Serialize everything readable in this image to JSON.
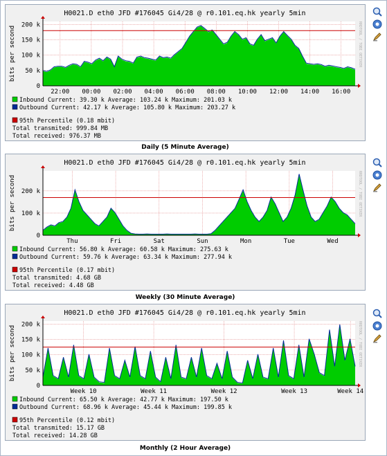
{
  "colors": {
    "inbound": "#00cc00",
    "outbound": "#002a97",
    "percentile": "#cc0000",
    "canvas": "#ffffff",
    "panel": "#f0f0f0"
  },
  "icons": [
    "zoom-in-icon",
    "zoom-out-icon",
    "edit-graph-icon"
  ],
  "graphs": [
    {
      "title": "H0021.D eth0 JFD #176045 Gi4/28 @ r0.101.eq.hk yearly 5min",
      "caption": "Daily (5 Minute Average)",
      "watermark": "RRDTOOL / TOBI OETIKER",
      "legend": {
        "inbound": "Inbound   Current:    39.30 k  Average:  103.24 k  Maximum:   201.03 k",
        "outbound": "Outbound  Current:    42.17 k  Average:  105.80 k  Maximum:   203.27 k",
        "percentile": "95th Percentile   (0.18 mbit)",
        "transmitted": "Total transmited: 999.84 MB",
        "received": "Total received: 976.37 MB"
      },
      "chart_data": {
        "type": "area",
        "ylabel": "bits per second",
        "x_ticks": [
          "22:00",
          "00:00",
          "02:00",
          "04:00",
          "06:00",
          "08:00",
          "10:00",
          "12:00",
          "14:00",
          "16:00",
          "18:00",
          "20:00"
        ],
        "x_tick_pos": [
          0.055,
          0.155,
          0.255,
          0.355,
          0.455,
          0.555,
          0.655,
          0.755,
          0.855,
          0.955,
          1.055,
          1.155
        ],
        "y_ticks": [
          "0",
          "50 k",
          "100 k",
          "150 k",
          "200 k"
        ],
        "y_tick_values": [
          0,
          50000,
          100000,
          150000,
          200000
        ],
        "ylim": [
          0,
          210000
        ],
        "percentile_95": 180000,
        "series": [
          {
            "name": "Inbound",
            "values": [
              48000,
              45000,
              50000,
              60000,
              62000,
              62000,
              58000,
              65000,
              70000,
              68000,
              60000,
              78000,
              75000,
              70000,
              82000,
              88000,
              80000,
              92000,
              85000,
              60000,
              95000,
              85000,
              80000,
              78000,
              72000,
              92000,
              95000,
              90000,
              88000,
              85000,
              82000,
              95000,
              90000,
              92000,
              88000,
              100000,
              110000,
              120000,
              140000,
              160000,
              175000,
              190000,
              195000,
              185000,
              175000,
              180000,
              165000,
              150000,
              135000,
              140000,
              160000,
              175000,
              165000,
              150000,
              155000,
              135000,
              130000,
              150000,
              165000,
              145000,
              150000,
              155000,
              138000,
              160000,
              175000,
              162000,
              150000,
              130000,
              120000,
              95000,
              72000,
              70000,
              68000,
              70000,
              67000,
              62000,
              65000,
              63000,
              60000,
              58000,
              55000,
              60000,
              57000,
              52000
            ]
          },
          {
            "name": "Outbound",
            "values": [
              50000,
              47000,
              52000,
              62000,
              64000,
              64000,
              60000,
              67000,
              72000,
              70000,
              62000,
              80000,
              77000,
              72000,
              84000,
              90000,
              82000,
              94000,
              87000,
              62000,
              97000,
              87000,
              82000,
              80000,
              74000,
              94000,
              97000,
              92000,
              90000,
              87000,
              84000,
              97000,
              92000,
              94000,
              90000,
              102000,
              112000,
              122000,
              142000,
              162000,
              177000,
              192000,
              197000,
              187000,
              177000,
              182000,
              167000,
              152000,
              137000,
              142000,
              162000,
              177000,
              167000,
              152000,
              157000,
              137000,
              132000,
              152000,
              167000,
              147000,
              152000,
              157000,
              140000,
              162000,
              177000,
              164000,
              152000,
              132000,
              122000,
              97000,
              74000,
              72000,
              70000,
              72000,
              69000,
              64000,
              67000,
              65000,
              62000,
              60000,
              57000,
              62000,
              59000,
              54000
            ]
          }
        ]
      }
    },
    {
      "title": "H0021.D eth0 JFD #176045 Gi4/28 @ r0.101.eq.hk yearly 5min",
      "caption": "Weekly (30 Minute Average)",
      "watermark": "RRDTOOL / TOBI OETIKER",
      "legend": {
        "inbound": "Inbound   Current:    56.80 k  Average:   60.58 k  Maximum:   275.63 k",
        "outbound": "Outbound  Current:    59.76 k  Average:   63.34 k  Maximum:   277.94 k",
        "percentile": "95th Percentile   (0.17 mbit)",
        "transmitted": "Total transmited: 4.68 GB",
        "received": "Total received: 4.48 GB"
      },
      "chart_data": {
        "type": "area",
        "ylabel": "bits per second",
        "x_ticks": [
          "Thu",
          "Fri",
          "Sat",
          "Sun",
          "Mon",
          "Tue",
          "Wed"
        ],
        "x_tick_pos": [
          0.094,
          0.233,
          0.372,
          0.511,
          0.65,
          0.789,
          0.928
        ],
        "y_ticks": [
          "0",
          "100 k",
          "200 k"
        ],
        "y_tick_values": [
          0,
          100000,
          200000
        ],
        "ylim": [
          0,
          290000
        ],
        "percentile_95": 170000,
        "series": [
          {
            "name": "Inbound",
            "values": [
              20000,
              35000,
              45000,
              40000,
              55000,
              60000,
              80000,
              120000,
              200000,
              150000,
              110000,
              90000,
              70000,
              50000,
              40000,
              60000,
              80000,
              120000,
              100000,
              70000,
              40000,
              20000,
              8000,
              5000,
              4000,
              4000,
              5000,
              4000,
              4000,
              4000,
              4000,
              5000,
              4000,
              4000,
              4000,
              4000,
              4000,
              4000,
              5000,
              4000,
              4000,
              4000,
              6000,
              20000,
              40000,
              60000,
              80000,
              100000,
              120000,
              160000,
              200000,
              150000,
              110000,
              80000,
              60000,
              80000,
              110000,
              170000,
              140000,
              100000,
              60000,
              80000,
              120000,
              180000,
              270000,
              200000,
              130000,
              80000,
              60000,
              70000,
              100000,
              130000,
              170000,
              150000,
              120000,
              100000,
              90000,
              70000,
              50000
            ]
          },
          {
            "name": "Outbound",
            "values": [
              22000,
              37000,
              47000,
              42000,
              57000,
              62000,
              82000,
              122000,
              205000,
              152000,
              112000,
              92000,
              72000,
              52000,
              42000,
              62000,
              82000,
              122000,
              102000,
              72000,
              42000,
              22000,
              9000,
              6000,
              5000,
              5000,
              6000,
              5000,
              5000,
              5000,
              5000,
              6000,
              5000,
              5000,
              5000,
              5000,
              5000,
              5000,
              6000,
              5000,
              5000,
              5000,
              7000,
              22000,
              42000,
              62000,
              82000,
              102000,
              122000,
              162000,
              205000,
              152000,
              112000,
              82000,
              62000,
              82000,
              112000,
              172000,
              142000,
              102000,
              62000,
              82000,
              122000,
              182000,
              276000,
              202000,
              132000,
              82000,
              62000,
              72000,
              102000,
              132000,
              172000,
              152000,
              122000,
              102000,
              92000,
              72000,
              52000
            ]
          }
        ]
      }
    },
    {
      "title": "H0021.D eth0 JFD #176045 Gi4/28 @ r0.101.eq.hk yearly 5min",
      "caption": "Monthly (2 Hour Average)",
      "watermark": "RRDTOOL / TOBI OETIKER",
      "legend": {
        "inbound": "Inbound   Current:    65.50 k  Average:   42.77 k  Maximum:   197.50 k",
        "outbound": "Outbound  Current:    68.96 k  Average:   45.44 k  Maximum:   199.85 k",
        "percentile": "95th Percentile   (0.12 mbit)",
        "transmitted": "Total transmited: 15.17 GB",
        "received": "Total received: 14.28 GB"
      },
      "chart_data": {
        "type": "area",
        "ylabel": "bits per second",
        "x_ticks": [
          "Week 10",
          "Week 11",
          "Week 12",
          "Week 13",
          "Week 14"
        ],
        "x_tick_pos": [
          0.13,
          0.355,
          0.58,
          0.805,
          0.985
        ],
        "y_ticks": [
          "0",
          "50 k",
          "100 k",
          "150 k",
          "200 k"
        ],
        "y_tick_values": [
          0,
          50000,
          100000,
          150000,
          200000
        ],
        "ylim": [
          0,
          210000
        ],
        "percentile_95": 125000,
        "series": [
          {
            "name": "Inbound",
            "values": [
              25000,
              120000,
              30000,
              20000,
              90000,
              25000,
              130000,
              30000,
              20000,
              100000,
              25000,
              10000,
              8000,
              120000,
              30000,
              20000,
              80000,
              25000,
              125000,
              30000,
              20000,
              110000,
              25000,
              10000,
              90000,
              20000,
              130000,
              25000,
              20000,
              90000,
              25000,
              120000,
              30000,
              20000,
              70000,
              20000,
              110000,
              25000,
              8000,
              6000,
              80000,
              20000,
              100000,
              25000,
              20000,
              120000,
              25000,
              145000,
              30000,
              20000,
              130000,
              25000,
              150000,
              100000,
              40000,
              30000,
              180000,
              60000,
              195000,
              80000,
              150000,
              60000
            ]
          },
          {
            "name": "Outbound",
            "values": [
              27000,
              122000,
              32000,
              22000,
              92000,
              27000,
              132000,
              32000,
              22000,
              102000,
              27000,
              12000,
              10000,
              122000,
              32000,
              22000,
              82000,
              27000,
              127000,
              32000,
              22000,
              112000,
              27000,
              12000,
              92000,
              22000,
              132000,
              27000,
              22000,
              92000,
              27000,
              122000,
              32000,
              22000,
              72000,
              22000,
              112000,
              27000,
              10000,
              8000,
              82000,
              22000,
              102000,
              27000,
              22000,
              122000,
              27000,
              147000,
              32000,
              22000,
              132000,
              27000,
              152000,
              102000,
              42000,
              32000,
              182000,
              62000,
              199000,
              82000,
              152000,
              62000
            ]
          }
        ]
      }
    }
  ]
}
